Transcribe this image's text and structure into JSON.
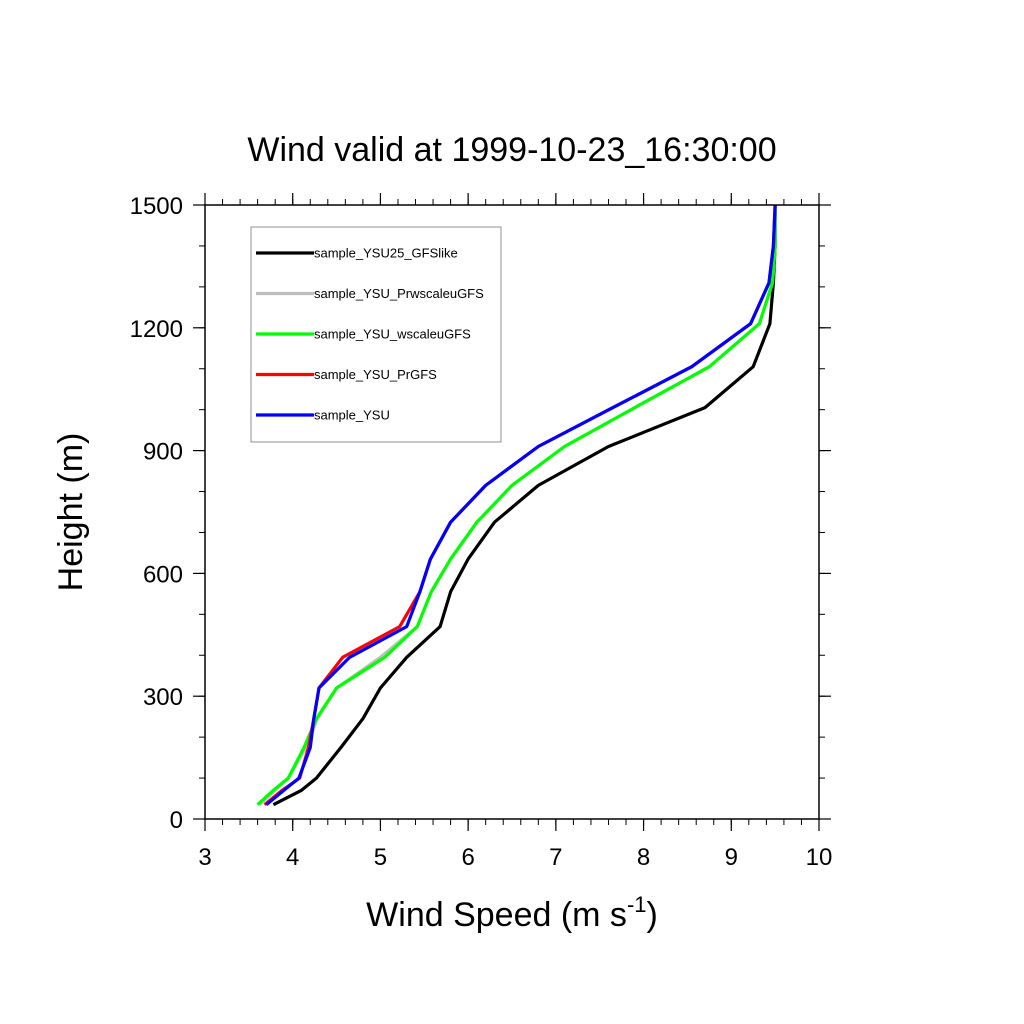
{
  "chart_data": {
    "type": "line",
    "title": "Wind valid at 1999-10-23_16:30:00",
    "xlabel": "Wind Speed (m s",
    "xlabel_sup": "-1",
    "xlabel_end": ")",
    "ylabel": "Height (m)",
    "xlim": [
      3,
      10
    ],
    "ylim": [
      0,
      1500
    ],
    "xticks": [
      3,
      4,
      5,
      6,
      7,
      8,
      9,
      10
    ],
    "yticks": [
      0,
      300,
      600,
      900,
      1200,
      1500
    ],
    "xtick_labels": [
      "3",
      "4",
      "5",
      "6",
      "7",
      "8",
      "9",
      "10"
    ],
    "ytick_labels": [
      "0",
      "300",
      "600",
      "900",
      "1200",
      "1500"
    ],
    "x_minor_step": 0.2,
    "y_minor_step": 100,
    "grid": false,
    "legend_position": "top-left",
    "series": [
      {
        "name": "sample_YSU25_GFSlike",
        "color": "#000000",
        "points": [
          [
            3.78,
            35
          ],
          [
            4.1,
            70
          ],
          [
            4.27,
            100
          ],
          [
            4.55,
            175
          ],
          [
            4.8,
            245
          ],
          [
            5.0,
            320
          ],
          [
            5.3,
            395
          ],
          [
            5.68,
            470
          ],
          [
            5.8,
            555
          ],
          [
            6.0,
            635
          ],
          [
            6.3,
            725
          ],
          [
            6.8,
            815
          ],
          [
            7.6,
            910
          ],
          [
            8.7,
            1005
          ],
          [
            9.25,
            1105
          ],
          [
            9.44,
            1210
          ],
          [
            9.48,
            1310
          ],
          [
            9.5,
            1400
          ],
          [
            9.5,
            1500
          ]
        ]
      },
      {
        "name": "sample_YSU_PrwscaleuGFS",
        "color": "#bebebe",
        "points": [
          [
            3.62,
            35
          ],
          [
            3.8,
            70
          ],
          [
            3.95,
            100
          ],
          [
            4.15,
            175
          ],
          [
            4.28,
            245
          ],
          [
            4.5,
            320
          ],
          [
            5.0,
            395
          ],
          [
            5.42,
            470
          ],
          [
            5.58,
            555
          ],
          [
            5.8,
            635
          ],
          [
            6.1,
            725
          ],
          [
            6.5,
            815
          ],
          [
            7.1,
            910
          ],
          [
            7.9,
            1005
          ],
          [
            8.75,
            1105
          ],
          [
            9.32,
            1210
          ],
          [
            9.47,
            1310
          ],
          [
            9.5,
            1400
          ],
          [
            9.5,
            1500
          ]
        ]
      },
      {
        "name": "sample_YSU_wscaleuGFS",
        "color": "#00ff00",
        "points": [
          [
            3.6,
            35
          ],
          [
            3.78,
            70
          ],
          [
            3.95,
            100
          ],
          [
            4.13,
            175
          ],
          [
            4.27,
            245
          ],
          [
            4.5,
            320
          ],
          [
            5.05,
            395
          ],
          [
            5.42,
            470
          ],
          [
            5.58,
            555
          ],
          [
            5.8,
            635
          ],
          [
            6.1,
            725
          ],
          [
            6.5,
            815
          ],
          [
            7.1,
            910
          ],
          [
            7.9,
            1005
          ],
          [
            8.75,
            1105
          ],
          [
            9.32,
            1210
          ],
          [
            9.47,
            1310
          ],
          [
            9.5,
            1400
          ],
          [
            9.5,
            1500
          ]
        ]
      },
      {
        "name": "sample_YSU_PrGFS",
        "color": "#ff0000",
        "points": [
          [
            3.68,
            35
          ],
          [
            3.88,
            70
          ],
          [
            4.08,
            100
          ],
          [
            4.18,
            175
          ],
          [
            4.24,
            245
          ],
          [
            4.3,
            320
          ],
          [
            4.57,
            395
          ],
          [
            5.22,
            470
          ],
          [
            5.45,
            555
          ],
          [
            5.57,
            635
          ],
          [
            5.8,
            725
          ],
          [
            6.2,
            815
          ],
          [
            6.8,
            910
          ],
          [
            7.65,
            1005
          ],
          [
            8.55,
            1105
          ],
          [
            9.22,
            1210
          ],
          [
            9.43,
            1310
          ],
          [
            9.48,
            1400
          ],
          [
            9.5,
            1500
          ]
        ]
      },
      {
        "name": "sample_YSU",
        "color": "#0000ff",
        "points": [
          [
            3.7,
            35
          ],
          [
            3.9,
            70
          ],
          [
            4.07,
            100
          ],
          [
            4.2,
            175
          ],
          [
            4.24,
            245
          ],
          [
            4.3,
            320
          ],
          [
            4.65,
            395
          ],
          [
            5.3,
            470
          ],
          [
            5.45,
            555
          ],
          [
            5.57,
            635
          ],
          [
            5.8,
            725
          ],
          [
            6.2,
            815
          ],
          [
            6.8,
            910
          ],
          [
            7.65,
            1005
          ],
          [
            8.55,
            1105
          ],
          [
            9.22,
            1210
          ],
          [
            9.43,
            1310
          ],
          [
            9.48,
            1400
          ],
          [
            9.5,
            1500
          ]
        ]
      }
    ]
  }
}
